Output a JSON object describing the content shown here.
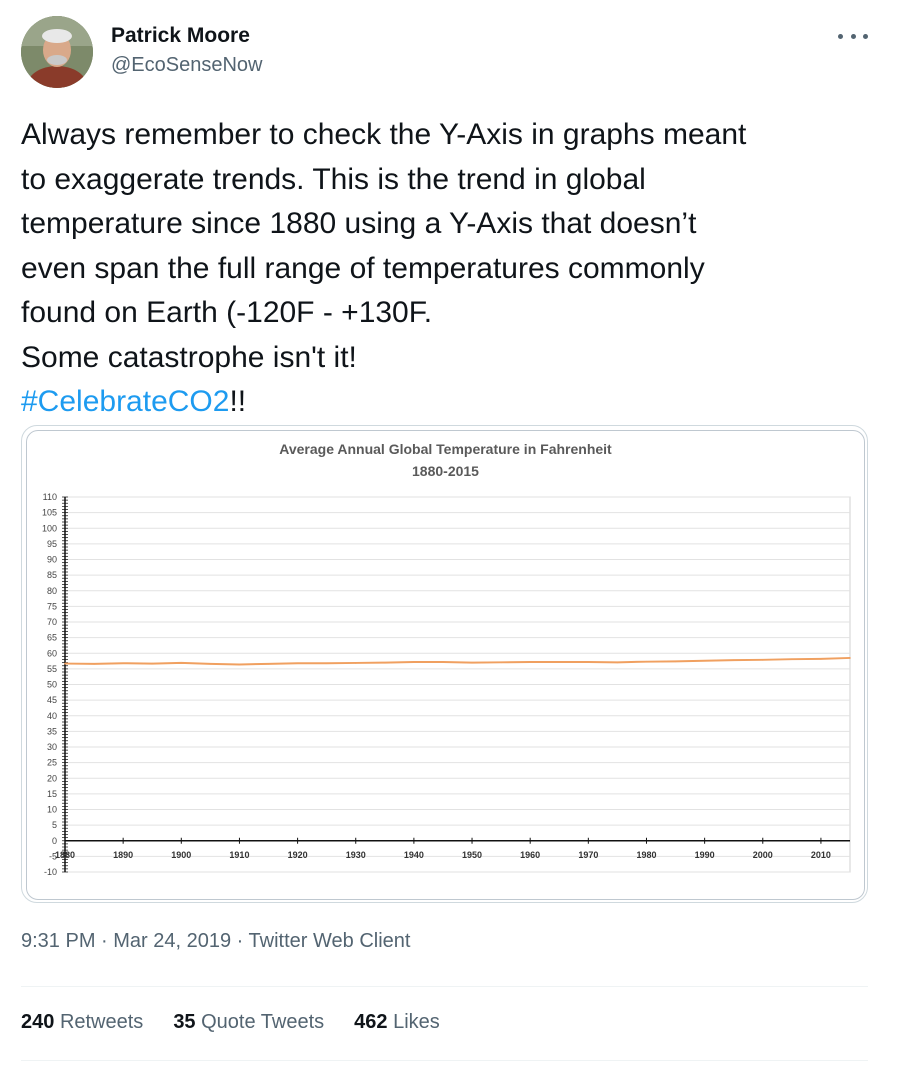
{
  "tweet": {
    "display_name": "Patrick Moore",
    "handle": "@EcoSenseNow",
    "text_lines": [
      "Always remember to check the Y-Axis in graphs meant",
      "to exaggerate trends. This is the trend in global",
      "temperature since 1880 using a Y-Axis that doesn’t",
      "even span the full range of temperatures commonly",
      "found on Earth (-120F - +130F.",
      "Some catastrophe isn't it!"
    ],
    "hashtag": "#CelebrateCO2",
    "hashtag_suffix": "!!",
    "time": "9:31 PM",
    "separator": " · ",
    "date": "Mar 24, 2019",
    "client": "Twitter Web Client",
    "stats": {
      "retweets_count": "240",
      "retweets_label": "Retweets",
      "quotes_count": "35",
      "quotes_label": "Quote Tweets",
      "likes_count": "462",
      "likes_label": "Likes"
    }
  },
  "icons": {
    "more": "more-horizontal-icon",
    "avatar": "profile-photo"
  },
  "colors": {
    "link": "#1d9bf0",
    "secondary_text": "#536471",
    "series_line": "#f0a060"
  },
  "chart_data": {
    "type": "line",
    "title": "Average Annual Global Temperature in Fahrenheit",
    "subtitle": "1880-2015",
    "ylim": [
      -10,
      110
    ],
    "yticks": [
      110,
      105,
      100,
      95,
      90,
      85,
      80,
      75,
      70,
      65,
      60,
      55,
      50,
      45,
      40,
      35,
      30,
      25,
      20,
      15,
      10,
      5,
      0,
      -5,
      -10
    ],
    "xlim": [
      1880,
      2015
    ],
    "xticks": [
      1880,
      1890,
      1900,
      1910,
      1920,
      1930,
      1940,
      1950,
      1960,
      1970,
      1980,
      1990,
      2000,
      2010
    ],
    "grid": true,
    "series": [
      {
        "x": [
          1880,
          1885,
          1890,
          1895,
          1900,
          1905,
          1910,
          1915,
          1920,
          1925,
          1930,
          1935,
          1940,
          1945,
          1950,
          1955,
          1960,
          1965,
          1970,
          1975,
          1980,
          1985,
          1990,
          1995,
          2000,
          2005,
          2010,
          2015
        ],
        "values": [
          56.7,
          56.6,
          56.8,
          56.7,
          56.9,
          56.6,
          56.4,
          56.6,
          56.8,
          56.8,
          56.9,
          57.0,
          57.2,
          57.2,
          57.0,
          57.1,
          57.2,
          57.2,
          57.2,
          57.1,
          57.3,
          57.4,
          57.6,
          57.8,
          57.9,
          58.1,
          58.2,
          58.5
        ]
      }
    ]
  }
}
